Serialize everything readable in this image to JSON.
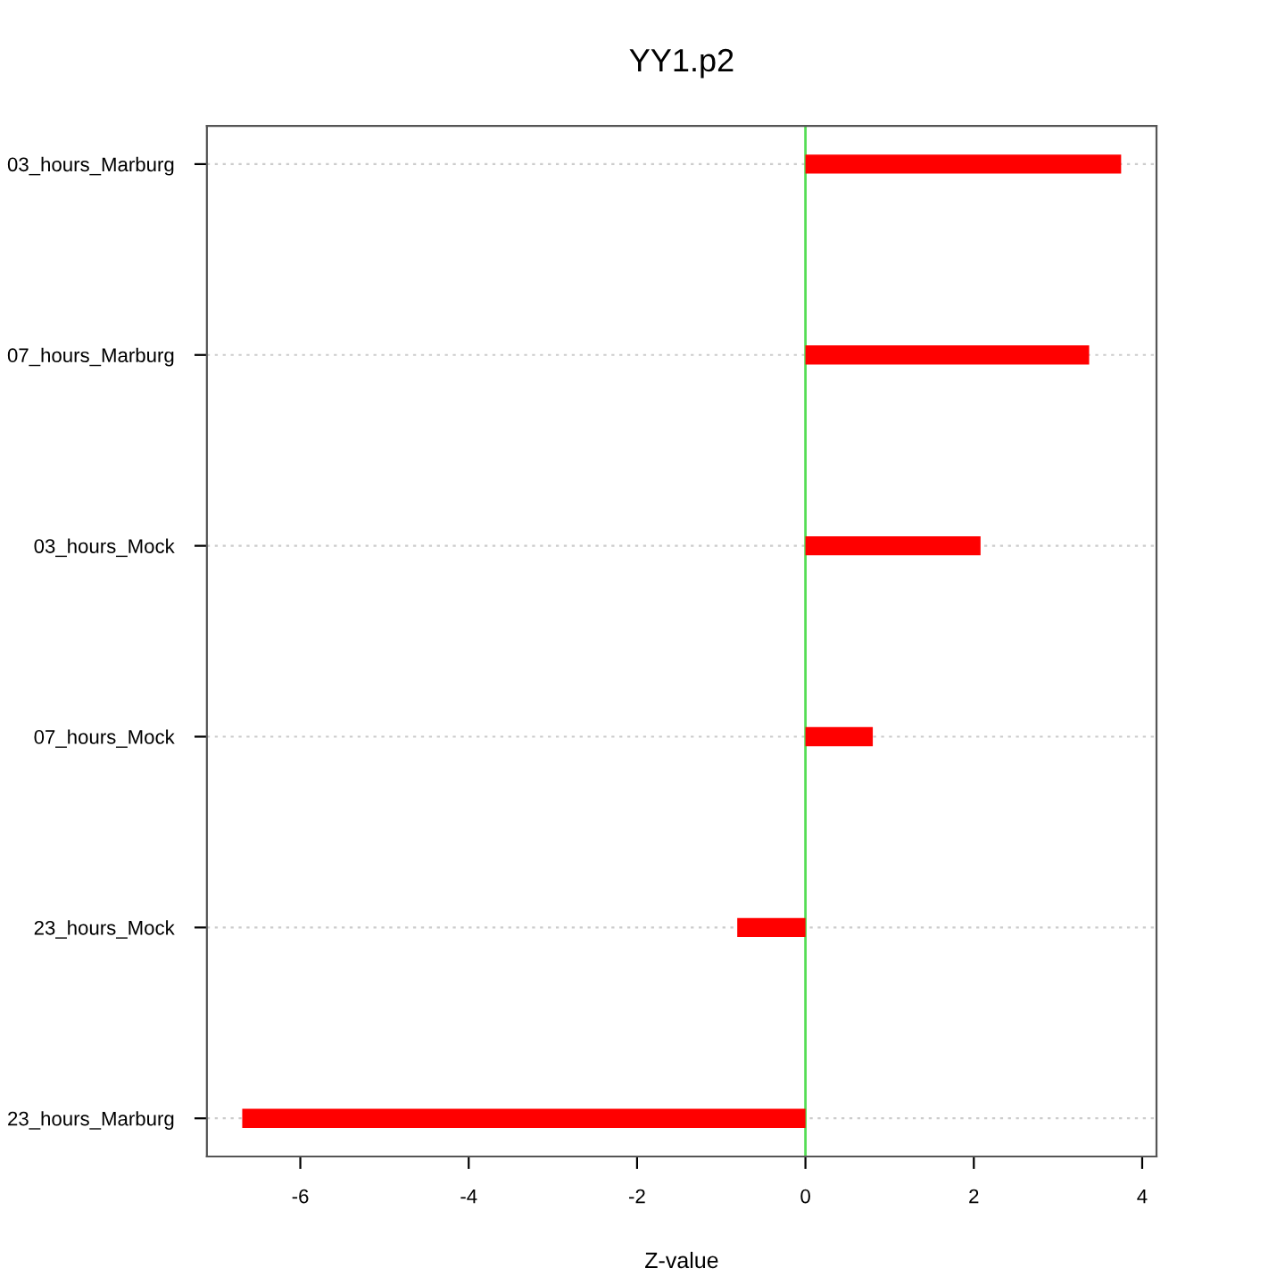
{
  "chart_data": {
    "type": "bar",
    "orientation": "horizontal",
    "title": "YY1.p2",
    "xlabel": "Z-value",
    "categories": [
      "03_hours_Marburg",
      "07_hours_Marburg",
      "03_hours_Mock",
      "07_hours_Mock",
      "23_hours_Mock",
      "23_hours_Marburg"
    ],
    "values": [
      3.75,
      3.37,
      2.08,
      0.8,
      -0.81,
      -6.69
    ],
    "color": "#ff0000",
    "xlim": [
      -7.11,
      4.17
    ],
    "xticks": [
      -6,
      -4,
      -2,
      0,
      2,
      4
    ],
    "grid": "y",
    "ref_lines": [
      {
        "axis": "x",
        "value": 0,
        "color": "#55dd55"
      }
    ]
  }
}
